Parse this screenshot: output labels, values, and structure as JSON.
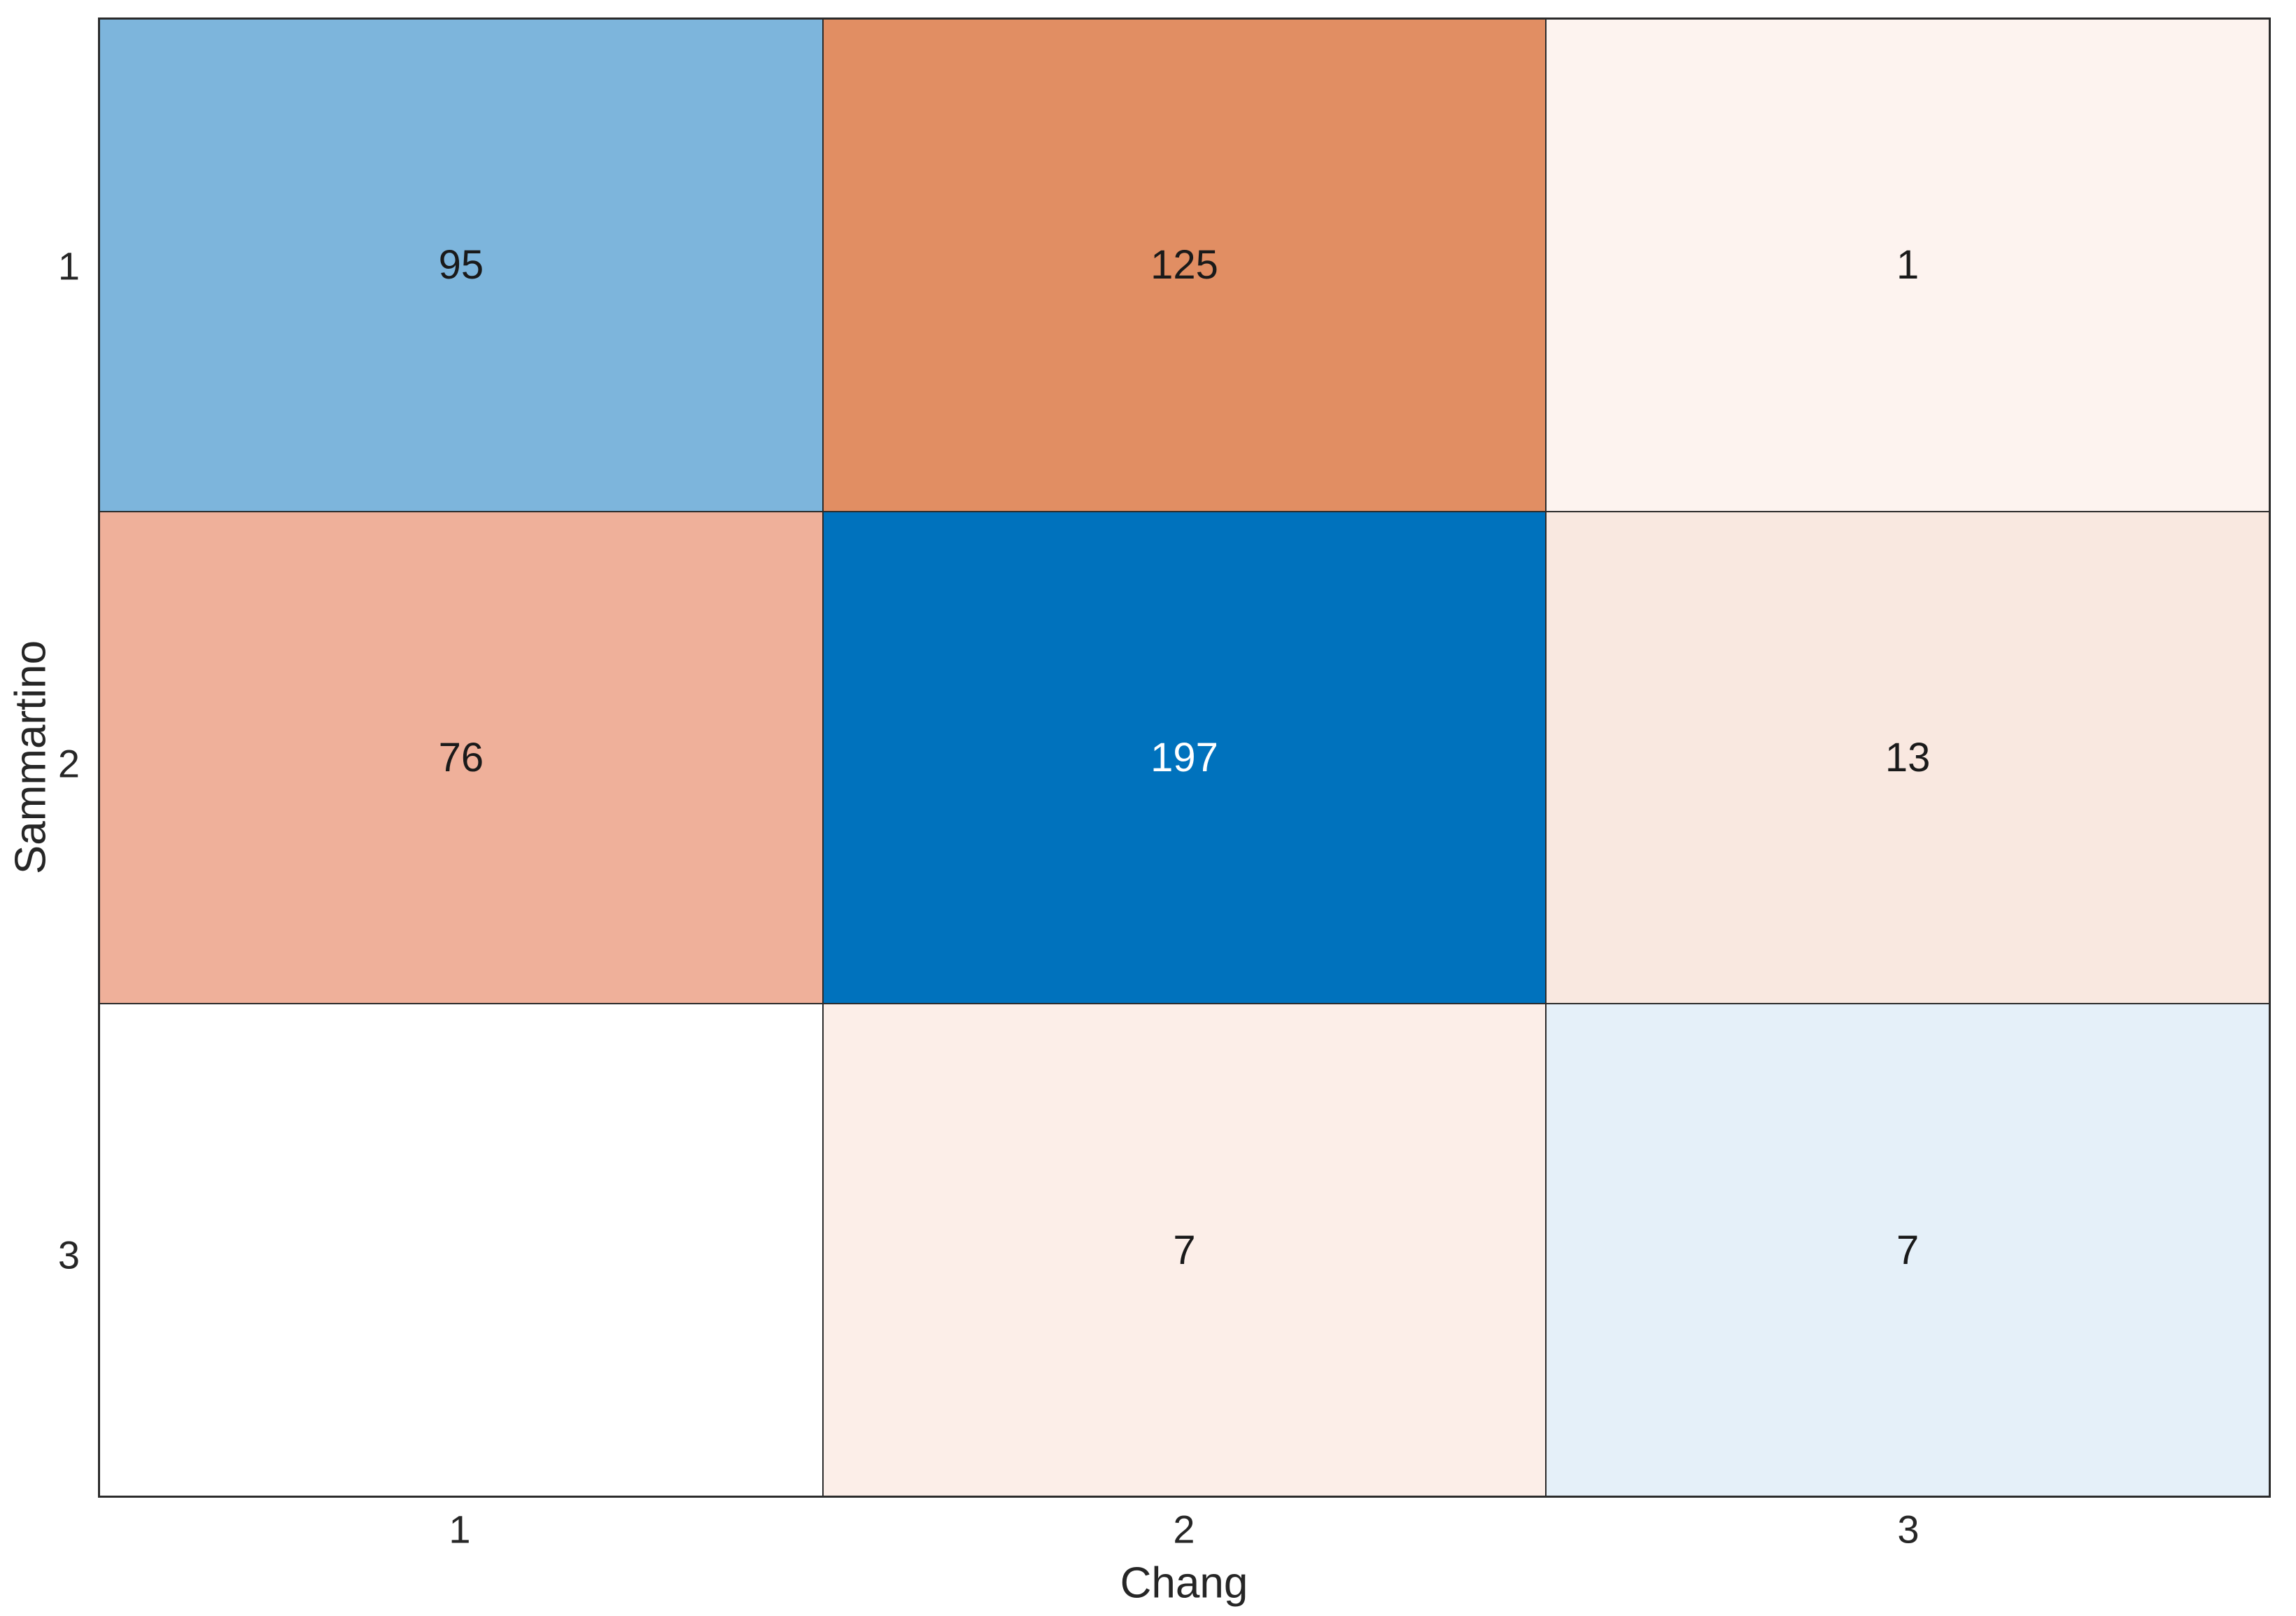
{
  "chart_data": {
    "type": "heatmap",
    "title": "",
    "xlabel": "Chang",
    "ylabel": "Sammartino",
    "x_categories": [
      "1",
      "2",
      "3"
    ],
    "y_categories": [
      "1",
      "2",
      "3"
    ],
    "matrix": [
      [
        95,
        125,
        1
      ],
      [
        76,
        197,
        13
      ],
      [
        null,
        7,
        7
      ]
    ],
    "legend_position": "none",
    "grid_color": "#2b2b2b",
    "background": "#ffffff",
    "cells": [
      {
        "row": "1",
        "col": "1",
        "label": "95",
        "bg": "#7db5dc",
        "fg": "#1a1a1a"
      },
      {
        "row": "1",
        "col": "2",
        "label": "125",
        "bg": "#e18e63",
        "fg": "#1a1a1a"
      },
      {
        "row": "1",
        "col": "3",
        "label": "1",
        "bg": "#fdf3ef",
        "fg": "#1a1a1a"
      },
      {
        "row": "2",
        "col": "1",
        "label": "76",
        "bg": "#efb09a",
        "fg": "#1a1a1a"
      },
      {
        "row": "2",
        "col": "2",
        "label": "197",
        "bg": "#0072bd",
        "fg": "#ffffff"
      },
      {
        "row": "2",
        "col": "3",
        "label": "13",
        "bg": "#f9e8e0",
        "fg": "#1a1a1a"
      },
      {
        "row": "3",
        "col": "1",
        "label": "",
        "bg": "#ffffff",
        "fg": "#1a1a1a"
      },
      {
        "row": "3",
        "col": "2",
        "label": "7",
        "bg": "#fceee8",
        "fg": "#1a1a1a"
      },
      {
        "row": "3",
        "col": "3",
        "label": "7",
        "bg": "#e5f0f9",
        "fg": "#1a1a1a"
      }
    ]
  }
}
